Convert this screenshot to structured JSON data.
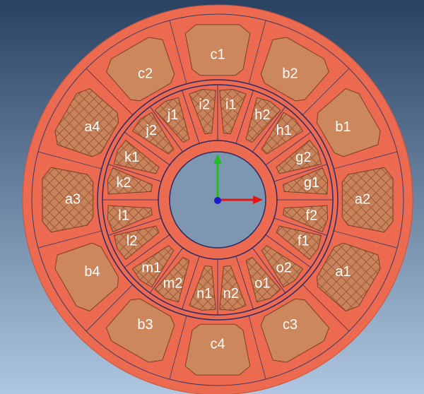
{
  "outer_slots": [
    "c1",
    "b2",
    "b1",
    "a2",
    "a1",
    "c3",
    "c4",
    "b3",
    "b4",
    "a3",
    "a4",
    "c2"
  ],
  "inner_slots": [
    "i2",
    "i1",
    "h2",
    "h1",
    "g2",
    "g1",
    "f2",
    "f1",
    "o2",
    "o1",
    "n2",
    "n1",
    "m2",
    "m1",
    "l2",
    "l1",
    "k2",
    "k1",
    "j2",
    "j1"
  ]
}
